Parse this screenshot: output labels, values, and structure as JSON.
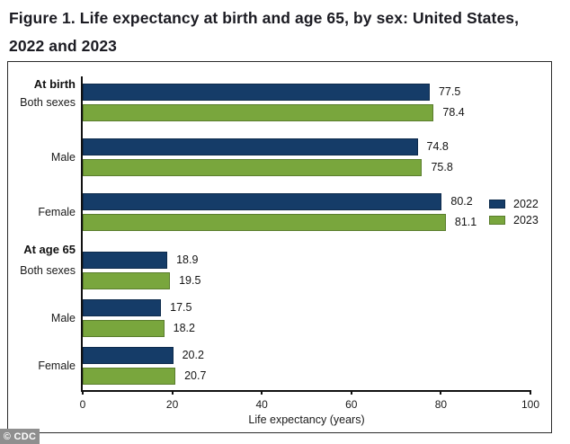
{
  "title": {
    "text": "Figure 1. Life expectancy at birth and age 65, by sex: United States, 2022 and 2023"
  },
  "credit": "© CDC",
  "chart_data": {
    "type": "bar",
    "orientation": "horizontal",
    "title": "Figure 1. Life expectancy at birth and age 65, by sex: United States, 2022 and 2023",
    "xlabel": "Life expectancy (years)",
    "ylabel": "",
    "xlim": [
      0,
      100
    ],
    "xticks": [
      0,
      20,
      40,
      60,
      80,
      100
    ],
    "grid": false,
    "legend": {
      "position": "center-right-inside",
      "entries": [
        "2022",
        "2023"
      ]
    },
    "colors": {
      "2022_fill": "#153c68",
      "2022_edge": "#0e2b4c",
      "2023_fill": "#79a63d",
      "2023_edge": "#5a7d2d",
      "axis": "#111111"
    },
    "series": [
      {
        "name": "2022",
        "values": [
          77.5,
          74.8,
          80.2,
          18.9,
          17.5,
          20.2
        ]
      },
      {
        "name": "2023",
        "values": [
          78.4,
          75.8,
          81.1,
          19.5,
          18.2,
          20.7
        ]
      }
    ],
    "sections": [
      {
        "header": "At birth",
        "rows": [
          {
            "label": "Both sexes",
            "2022": 77.5,
            "2023": 78.4
          },
          {
            "label": "Male",
            "2022": 74.8,
            "2023": 75.8
          },
          {
            "label": "Female",
            "2022": 80.2,
            "2023": 81.1
          }
        ]
      },
      {
        "header": "At age 65",
        "rows": [
          {
            "label": "Both sexes",
            "2022": 18.9,
            "2023": 19.5
          },
          {
            "label": "Male",
            "2022": 17.5,
            "2023": 18.2
          },
          {
            "label": "Female",
            "2022": 20.2,
            "2023": 20.7
          }
        ]
      }
    ]
  }
}
